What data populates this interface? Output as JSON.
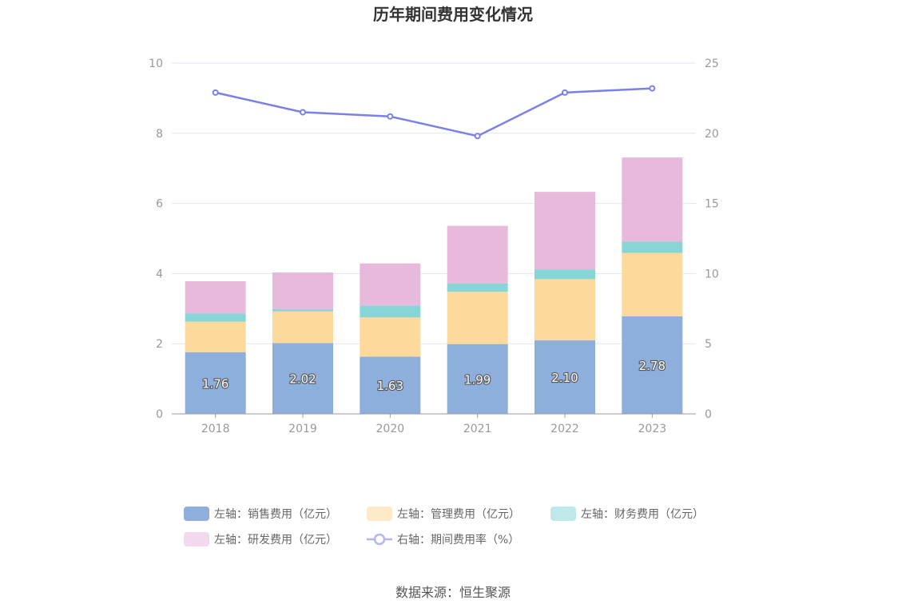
{
  "chart_data": {
    "type": "bar",
    "title": "历年期间费用变化情况",
    "categories": [
      "2018",
      "2019",
      "2020",
      "2021",
      "2022",
      "2023"
    ],
    "series": [
      {
        "name": "左轴：销售费用（亿元）",
        "type": "bar",
        "axis": "left",
        "color": "#8eaedb",
        "values": [
          1.76,
          2.02,
          1.63,
          1.99,
          2.1,
          2.78
        ],
        "labels": [
          "1.76",
          "2.02",
          "1.63",
          "1.99",
          "2.10",
          "2.78"
        ]
      },
      {
        "name": "左轴：管理费用（亿元）",
        "type": "bar",
        "axis": "left",
        "color": "#fdd99b",
        "values": [
          0.87,
          0.9,
          1.12,
          1.49,
          1.74,
          1.81
        ]
      },
      {
        "name": "左轴：财务费用（亿元）",
        "type": "bar",
        "axis": "left",
        "color": "#88d5d8",
        "values": [
          0.23,
          0.07,
          0.34,
          0.24,
          0.28,
          0.32
        ]
      },
      {
        "name": "左轴：研发费用（亿元）",
        "type": "bar",
        "axis": "left",
        "color": "#e7b9da",
        "values": [
          0.92,
          1.04,
          1.2,
          1.64,
          2.21,
          2.4
        ]
      },
      {
        "name": "右轴：期间费用率（%）",
        "type": "line",
        "axis": "right",
        "color": "#7b80e8",
        "values": [
          22.9,
          21.5,
          21.2,
          19.8,
          22.9,
          23.2
        ]
      }
    ],
    "left_axis": {
      "min": 0,
      "max": 10,
      "ticks": [
        "0",
        "2",
        "4",
        "6",
        "8",
        "10"
      ]
    },
    "right_axis": {
      "min": 0,
      "max": 25,
      "ticks": [
        "0",
        "5",
        "10",
        "15",
        "20",
        "25"
      ]
    },
    "stacked": true,
    "grid": true,
    "legend_position": "bottom",
    "source": "数据来源：恒生聚源"
  },
  "colors": {
    "grid": "#e3e5f0",
    "axis_line": "#999999",
    "legend_line_marker": "#b3b6f0"
  }
}
